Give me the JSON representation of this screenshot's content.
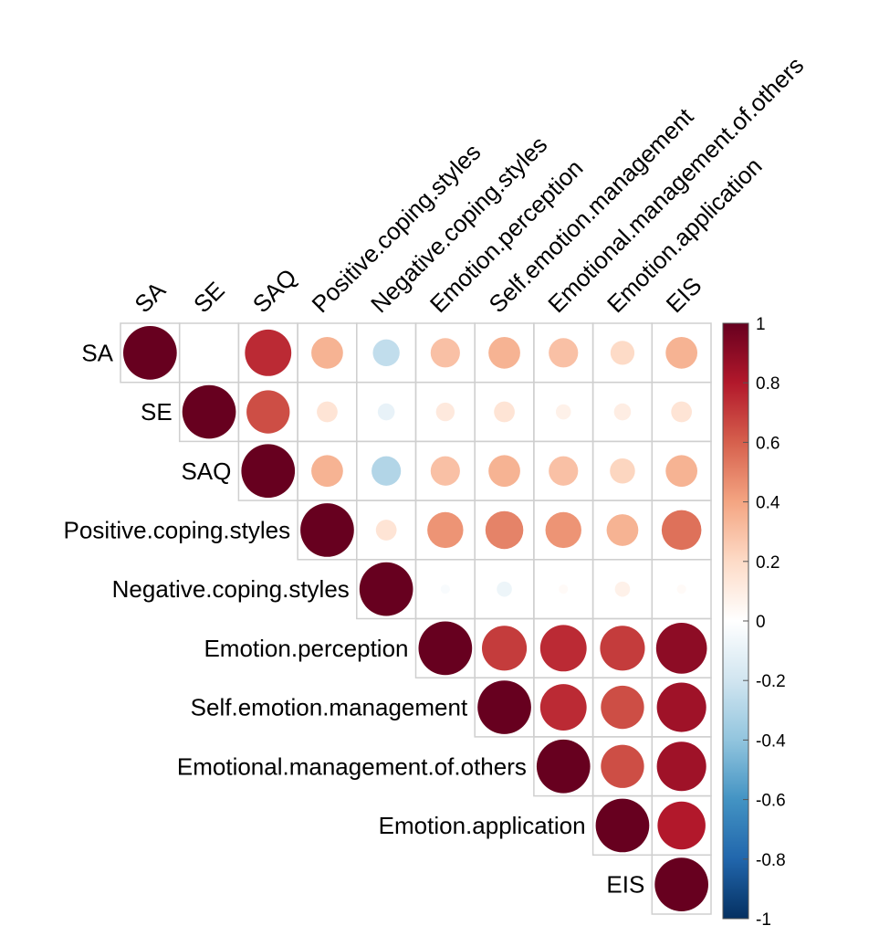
{
  "chart_data": {
    "type": "heatmap",
    "subtype": "correlation-upper-triangle-circles",
    "variables": [
      "SA",
      "SE",
      "SAQ",
      "Positive.coping.styles",
      "Negative.coping.styles",
      "Emotion.perception",
      "Self.emotion.management",
      "Emotional.management.of.others",
      "Emotion.application",
      "EIS"
    ],
    "matrix": [
      [
        1.0,
        0.0,
        0.75,
        0.35,
        -0.25,
        0.3,
        0.35,
        0.3,
        0.2,
        0.35
      ],
      [
        0.0,
        1.0,
        0.65,
        0.15,
        -0.1,
        0.12,
        0.15,
        0.08,
        0.1,
        0.15
      ],
      [
        0.75,
        0.65,
        1.0,
        0.35,
        -0.3,
        0.3,
        0.35,
        0.3,
        0.22,
        0.35
      ],
      [
        0.35,
        0.15,
        0.35,
        1.0,
        0.15,
        0.45,
        0.5,
        0.45,
        0.35,
        0.55
      ],
      [
        -0.25,
        -0.1,
        -0.3,
        0.15,
        1.0,
        -0.03,
        -0.08,
        0.03,
        0.08,
        0.03
      ],
      [
        0.3,
        0.12,
        0.3,
        0.45,
        -0.03,
        1.0,
        0.7,
        0.75,
        0.7,
        0.9
      ],
      [
        0.35,
        0.15,
        0.35,
        0.5,
        -0.08,
        0.7,
        1.0,
        0.75,
        0.65,
        0.85
      ],
      [
        0.3,
        0.08,
        0.3,
        0.45,
        0.03,
        0.75,
        0.75,
        1.0,
        0.65,
        0.85
      ],
      [
        0.2,
        0.1,
        0.22,
        0.35,
        0.08,
        0.7,
        0.65,
        0.65,
        1.0,
        0.8
      ],
      [
        0.35,
        0.15,
        0.35,
        0.55,
        0.03,
        0.9,
        0.85,
        0.85,
        0.8,
        1.0
      ]
    ],
    "colorbar": {
      "range": [
        -1,
        1
      ],
      "ticks": [
        "1",
        "0.8",
        "0.6",
        "0.4",
        "0.2",
        "0",
        "-0.2",
        "-0.4",
        "-0.6",
        "-0.8",
        "-1"
      ],
      "tick_values": [
        1,
        0.8,
        0.6,
        0.4,
        0.2,
        0,
        -0.2,
        -0.4,
        -0.6,
        -0.8,
        -1
      ],
      "colors": [
        "#67001F",
        "#B2182B",
        "#D6604D",
        "#F4A582",
        "#FDDBC7",
        "#FFFFFF",
        "#D1E5F0",
        "#92C5DE",
        "#4393C3",
        "#2166AC",
        "#053061"
      ]
    },
    "grid": true,
    "legend_position": "right"
  }
}
